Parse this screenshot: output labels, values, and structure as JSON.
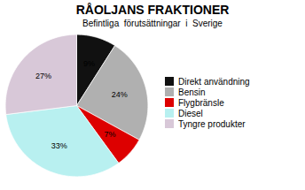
{
  "chart_data": {
    "type": "pie",
    "title": "RÅOLJANS FRAKTIONER",
    "subtitle": "Befintliga  förutsättningar  i  Sverige",
    "categories": [
      "Direkt användning",
      "Bensin",
      "Flygbränsle",
      "Diesel",
      "Tyngre produkter"
    ],
    "values": [
      9,
      24,
      7,
      33,
      27
    ],
    "value_labels": [
      "9%",
      "24%",
      "7%",
      "33%",
      "27%"
    ],
    "colors": [
      "#111111",
      "#b0b0b0",
      "#dd0000",
      "#b8f0f0",
      "#d8c8d8"
    ],
    "data_labels": true,
    "legend": "right"
  }
}
